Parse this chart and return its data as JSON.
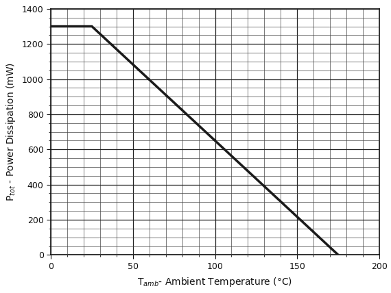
{
  "x_data": [
    0,
    25,
    175
  ],
  "y_data": [
    1300,
    1300,
    0
  ],
  "xlim": [
    0,
    200
  ],
  "ylim": [
    0,
    1400
  ],
  "xticks_major": [
    0,
    50,
    100,
    150,
    200
  ],
  "yticks_major": [
    0,
    200,
    400,
    600,
    800,
    1000,
    1200,
    1400
  ],
  "x_minor_interval": 10,
  "y_minor_interval": 50,
  "xlabel": "T$_{amb}$- Ambient Temperature (°C)",
  "ylabel": "P$_{tot}$ - Power Dissipation (mW)",
  "line_color": "#1a1a1a",
  "line_width": 2.5,
  "grid_major_color": "#222222",
  "grid_major_lw": 0.9,
  "grid_minor_color": "#444444",
  "grid_minor_lw": 0.5,
  "bg_color": "#ffffff",
  "tick_fontsize": 9,
  "label_fontsize": 10,
  "spine_color": "#111111",
  "spine_lw": 1.2
}
